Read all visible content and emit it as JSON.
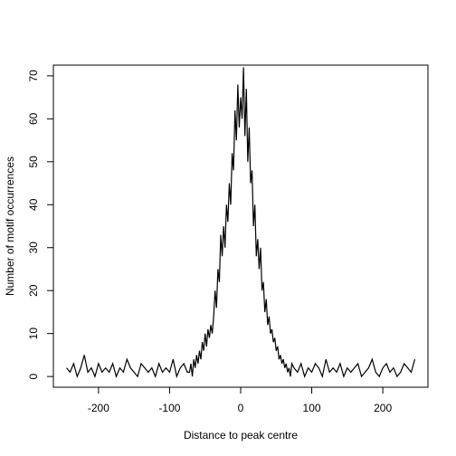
{
  "chart_data": {
    "type": "line",
    "x_label": "Distance to peak centre",
    "y_label": "Number of motif occurrences",
    "color": "#000000",
    "x": [
      -245,
      -240,
      -235,
      -230,
      -225,
      -220,
      -215,
      -210,
      -205,
      -200,
      -195,
      -190,
      -185,
      -180,
      -175,
      -170,
      -165,
      -160,
      -155,
      -150,
      -145,
      -140,
      -135,
      -130,
      -125,
      -120,
      -115,
      -110,
      -105,
      -100,
      -95,
      -90,
      -85,
      -80,
      -75,
      -72,
      -70,
      -68,
      -66,
      -64,
      -62,
      -60,
      -58,
      -56,
      -54,
      -52,
      -50,
      -48,
      -46,
      -44,
      -42,
      -40,
      -38,
      -36,
      -34,
      -32,
      -30,
      -28,
      -26,
      -24,
      -22,
      -20,
      -18,
      -16,
      -14,
      -12,
      -10,
      -8,
      -6,
      -4,
      -2,
      0,
      2,
      4,
      6,
      8,
      10,
      12,
      14,
      16,
      18,
      20,
      22,
      24,
      26,
      28,
      30,
      32,
      34,
      36,
      38,
      40,
      42,
      44,
      46,
      48,
      50,
      52,
      54,
      56,
      58,
      60,
      62,
      64,
      66,
      68,
      70,
      72,
      75,
      80,
      85,
      90,
      95,
      100,
      105,
      110,
      115,
      120,
      125,
      130,
      135,
      140,
      145,
      150,
      155,
      160,
      165,
      170,
      175,
      180,
      185,
      190,
      195,
      200,
      205,
      210,
      215,
      220,
      225,
      230,
      235,
      240,
      245
    ],
    "values": [
      2,
      1,
      3,
      0,
      2,
      5,
      1,
      2,
      0,
      3,
      1,
      2,
      1,
      3,
      0,
      2,
      1,
      4,
      2,
      1,
      0,
      3,
      2,
      1,
      2,
      0,
      3,
      1,
      2,
      1,
      4,
      0,
      2,
      3,
      1,
      1,
      3,
      0,
      4,
      2,
      5,
      3,
      6,
      4,
      8,
      6,
      10,
      7,
      11,
      9,
      12,
      10,
      14,
      20,
      16,
      25,
      22,
      33,
      28,
      35,
      30,
      40,
      36,
      45,
      40,
      52,
      48,
      62,
      55,
      68,
      58,
      65,
      60,
      72,
      56,
      67,
      50,
      58,
      45,
      48,
      35,
      40,
      28,
      32,
      25,
      30,
      20,
      22,
      15,
      18,
      12,
      14,
      10,
      11,
      8,
      9,
      6,
      7,
      4,
      5,
      3,
      4,
      2,
      3,
      1,
      2,
      0,
      3,
      2,
      1,
      3,
      0,
      2,
      1,
      3,
      2,
      0,
      4,
      1,
      2,
      1,
      3,
      0,
      2,
      1,
      2,
      3,
      0,
      1,
      2,
      4,
      1,
      0,
      2,
      3,
      1,
      2,
      0,
      1,
      3,
      2,
      1,
      4
    ],
    "xlim": [
      -263.5,
      263.5
    ],
    "ylim": [
      -2.5,
      72.5
    ],
    "xticks": [
      -200,
      -100,
      0,
      100,
      200
    ],
    "yticks": [
      0,
      10,
      20,
      30,
      40,
      50,
      60,
      70
    ]
  }
}
